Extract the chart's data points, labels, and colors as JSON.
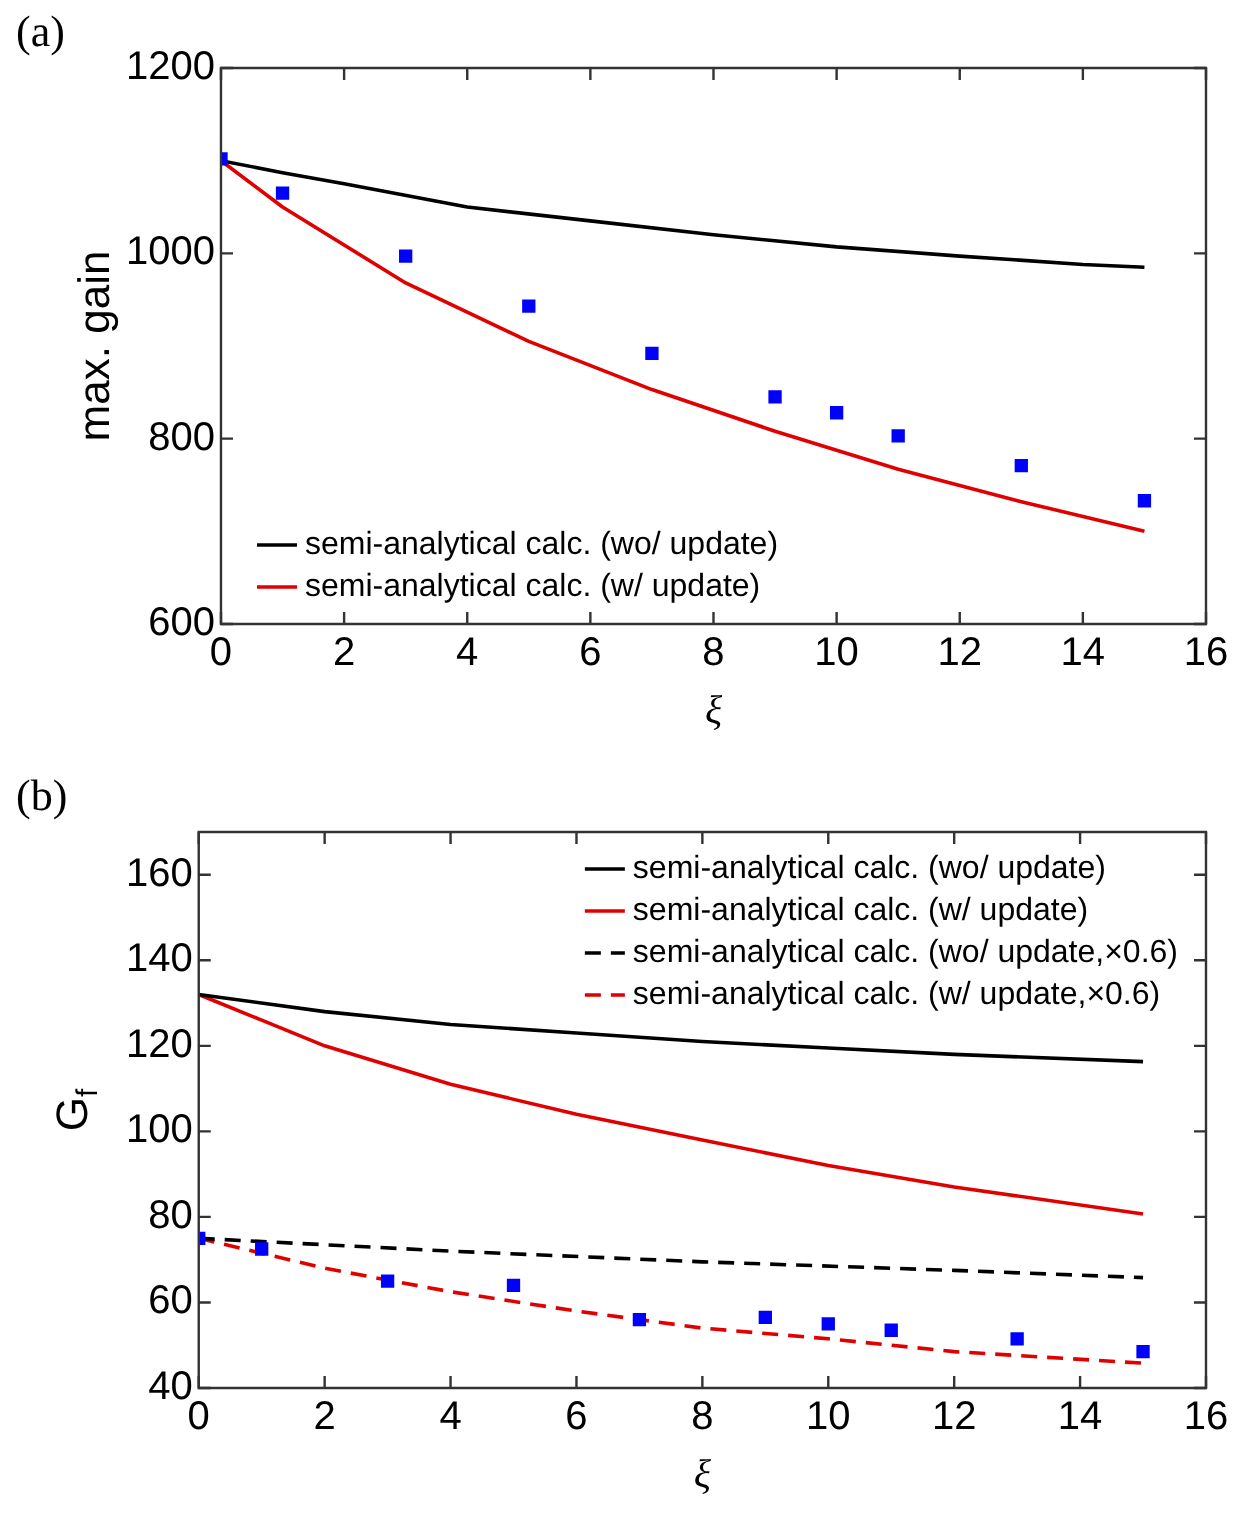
{
  "chart_data": [
    {
      "type": "line",
      "title": "(a)",
      "xlabel": "ξ",
      "ylabel": "max. gain",
      "xlim": [
        0,
        16
      ],
      "xticks": [
        0,
        2,
        4,
        6,
        8,
        10,
        12,
        14,
        16
      ],
      "ylim": [
        600,
        1200
      ],
      "yticks": [
        600,
        800,
        1000,
        1200
      ],
      "grid": false,
      "legend": "bottom left",
      "series": [
        {
          "type": "scatter",
          "color": "#0000ff",
          "marker": "square",
          "x": [
            0,
            1,
            3,
            5,
            7,
            9,
            10,
            11,
            13,
            15
          ],
          "values": [
            1102,
            1065,
            997,
            943,
            892,
            845,
            828,
            803,
            771,
            733
          ]
        },
        {
          "name": "semi-analytical calc. (wo/ update)",
          "color": "#000000",
          "marker": "none",
          "line_style": "solid",
          "x": [
            0,
            1,
            2,
            4,
            6,
            8,
            10,
            12,
            14,
            15
          ],
          "values": [
            1100,
            1087,
            1075,
            1050,
            1035,
            1020,
            1007,
            997,
            988,
            985
          ]
        },
        {
          "name": "semi-analytical calc. (w/ update)",
          "color": "#e00000",
          "marker": "none",
          "line_style": "solid",
          "x": [
            0,
            1,
            3,
            5,
            7,
            9,
            11,
            13,
            15
          ],
          "values": [
            1100,
            1050,
            968,
            905,
            853,
            808,
            767,
            732,
            700
          ]
        }
      ]
    },
    {
      "type": "line",
      "title": "(b)",
      "xlabel": "ξ",
      "ylabel": "G$_{f}$",
      "xlim": [
        0,
        16
      ],
      "xticks": [
        0,
        2,
        4,
        6,
        8,
        10,
        12,
        14,
        16
      ],
      "ylim": [
        40,
        170
      ],
      "yticks": [
        40,
        60,
        80,
        100,
        120,
        140,
        160
      ],
      "grid": false,
      "legend": "top right",
      "series": [
        {
          "type": "scatter",
          "color": "#0000ff",
          "marker": "square",
          "x": [
            0,
            1,
            3,
            5,
            7,
            9,
            10,
            11,
            13,
            15
          ],
          "values": [
            75,
            72.5,
            65,
            64,
            56,
            56.5,
            55,
            53.5,
            51.5,
            48.5
          ]
        },
        {
          "name": "semi-analytical calc. (wo/ update)",
          "color": "#000000",
          "marker": "none",
          "line_style": "solid",
          "x": [
            0,
            2,
            4,
            6,
            8,
            10,
            12,
            15
          ],
          "values": [
            132,
            128,
            125,
            123,
            121,
            119.5,
            118,
            116.3
          ]
        },
        {
          "name": "semi-analytical calc. (w/ update)",
          "color": "#e00000",
          "marker": "none",
          "line_style": "solid",
          "x": [
            0,
            1,
            2,
            4,
            6,
            8,
            10,
            12,
            15
          ],
          "values": [
            132,
            126,
            120,
            111,
            104,
            98,
            92,
            87,
            80.7
          ]
        },
        {
          "name": "semi-analytical calc. (wo/ update,×0.6)",
          "color": "#000000",
          "marker": "none",
          "line_style": "dashed",
          "x": [
            0,
            4,
            8,
            12,
            15
          ],
          "values": [
            75,
            72,
            69.5,
            67.5,
            65.8
          ]
        },
        {
          "name": "semi-analytical calc. (w/ update,×0.6)",
          "color": "#e00000",
          "marker": "none",
          "line_style": "dashed",
          "x": [
            0,
            1,
            2,
            4,
            6,
            8,
            10,
            12,
            15
          ],
          "values": [
            75,
            71.5,
            68,
            62.5,
            58,
            54,
            51.5,
            48.5,
            45.8
          ]
        }
      ]
    }
  ]
}
